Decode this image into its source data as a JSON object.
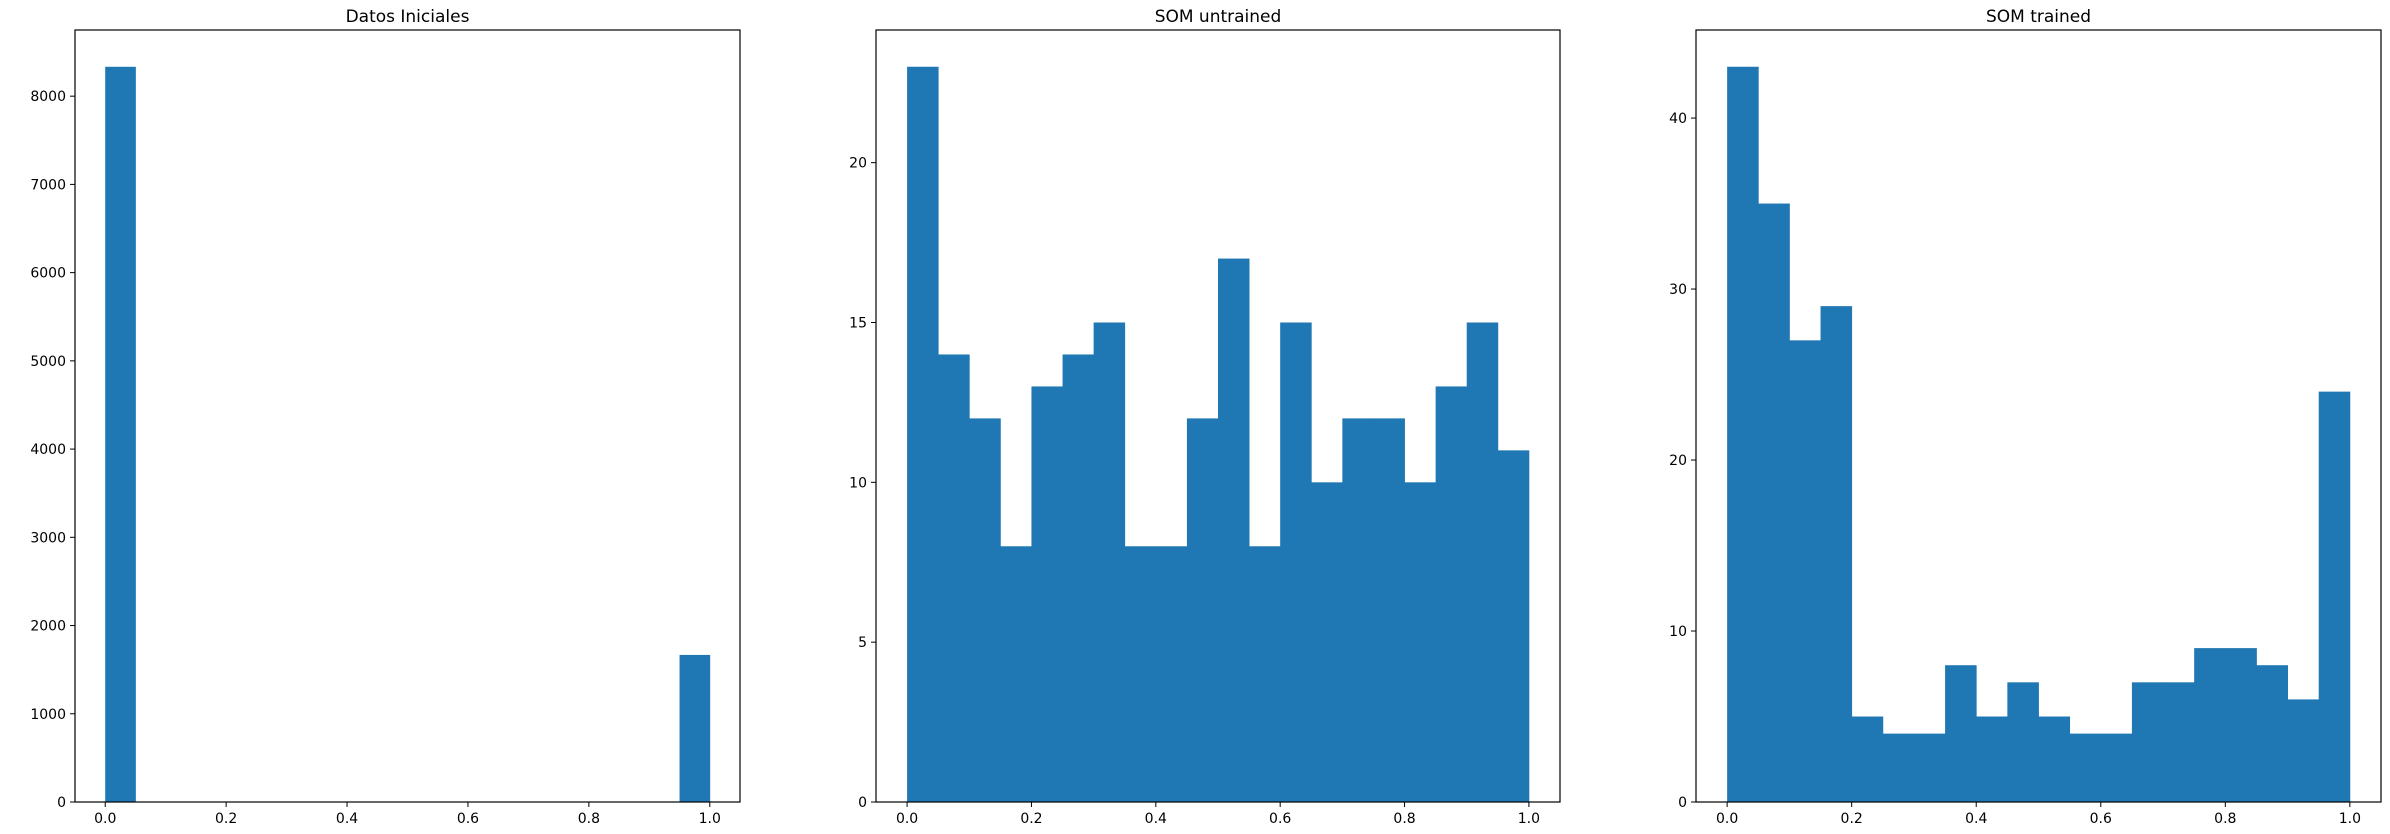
{
  "colors": {
    "bar": "#1f77b4",
    "axis": "#000000",
    "background": "#ffffff"
  },
  "chart_data": [
    {
      "type": "bar",
      "title": "Datos Iniciales",
      "xlabel": "",
      "ylabel": "",
      "grid": false,
      "xlim": [
        -0.05,
        1.05
      ],
      "ylim": [
        0,
        8750
      ],
      "bin_edges": [
        0.0,
        0.05,
        0.1,
        0.15,
        0.2,
        0.25,
        0.3,
        0.35,
        0.4,
        0.45,
        0.5,
        0.55,
        0.6,
        0.65,
        0.7,
        0.75,
        0.8,
        0.85,
        0.9,
        0.95,
        1.0
      ],
      "values": [
        8333,
        0,
        0,
        0,
        0,
        0,
        0,
        0,
        0,
        0,
        0,
        0,
        0,
        0,
        0,
        0,
        0,
        0,
        0,
        1667
      ],
      "xticks": [
        0.0,
        0.2,
        0.4,
        0.6,
        0.8,
        1.0
      ],
      "xtick_labels": [
        "0.0",
        "0.2",
        "0.4",
        "0.6",
        "0.8",
        "1.0"
      ],
      "yticks": [
        0,
        1000,
        2000,
        3000,
        4000,
        5000,
        6000,
        7000,
        8000
      ],
      "ytick_labels": [
        "0",
        "1000",
        "2000",
        "3000",
        "4000",
        "5000",
        "6000",
        "7000",
        "8000"
      ]
    },
    {
      "type": "bar",
      "title": "SOM untrained",
      "xlabel": "",
      "ylabel": "",
      "grid": false,
      "xlim": [
        -0.05,
        1.05
      ],
      "ylim": [
        0,
        24.15
      ],
      "bin_edges": [
        0.0,
        0.05,
        0.1,
        0.15,
        0.2,
        0.25,
        0.3,
        0.35,
        0.4,
        0.45,
        0.5,
        0.55,
        0.6,
        0.65,
        0.7,
        0.75,
        0.8,
        0.85,
        0.9,
        0.95,
        1.0
      ],
      "values": [
        23,
        14,
        12,
        8,
        13,
        14,
        15,
        8,
        8,
        12,
        17,
        8,
        15,
        10,
        12,
        12,
        10,
        13,
        15,
        11
      ],
      "xticks": [
        0.0,
        0.2,
        0.4,
        0.6,
        0.8,
        1.0
      ],
      "xtick_labels": [
        "0.0",
        "0.2",
        "0.4",
        "0.6",
        "0.8",
        "1.0"
      ],
      "yticks": [
        0,
        5,
        10,
        15,
        20
      ],
      "ytick_labels": [
        "0",
        "5",
        "10",
        "15",
        "20"
      ]
    },
    {
      "type": "bar",
      "title": "SOM trained",
      "xlabel": "",
      "ylabel": "",
      "grid": false,
      "xlim": [
        -0.05,
        1.05
      ],
      "ylim": [
        0,
        45.15
      ],
      "bin_edges": [
        0.0,
        0.05,
        0.1,
        0.15,
        0.2,
        0.25,
        0.3,
        0.35,
        0.4,
        0.45,
        0.5,
        0.55,
        0.6,
        0.65,
        0.7,
        0.75,
        0.8,
        0.85,
        0.9,
        0.95,
        1.0
      ],
      "values": [
        43,
        35,
        27,
        29,
        5,
        4,
        4,
        8,
        5,
        7,
        5,
        4,
        4,
        7,
        7,
        9,
        9,
        8,
        6,
        24
      ],
      "xticks": [
        0.0,
        0.2,
        0.4,
        0.6,
        0.8,
        1.0
      ],
      "xtick_labels": [
        "0.0",
        "0.2",
        "0.4",
        "0.6",
        "0.8",
        "1.0"
      ],
      "yticks": [
        0,
        10,
        20,
        30,
        40
      ],
      "ytick_labels": [
        "0",
        "10",
        "20",
        "30",
        "40"
      ]
    }
  ]
}
